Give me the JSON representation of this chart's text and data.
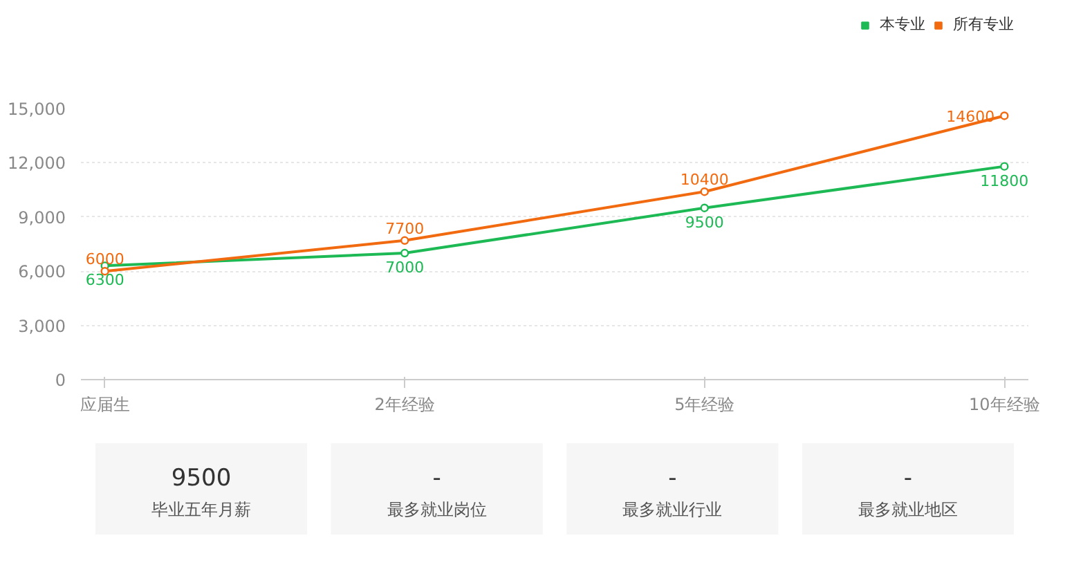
{
  "chart_data": [
    {
      "type": "line",
      "categories": [
        "应届生",
        "2年经验",
        "5年经验",
        "10年经验"
      ],
      "series": [
        {
          "name": "本专业",
          "color": "#1db954",
          "values": [
            6300,
            7000,
            9500,
            11800
          ]
        },
        {
          "name": "所有专业",
          "color": "#f26a0f",
          "values": [
            6000,
            7700,
            10400,
            14600
          ]
        }
      ],
      "ylim": [
        0,
        15000
      ],
      "yticks": [
        0,
        {
          "value": 3000,
          "label": "3,000"
        },
        {
          "value": 6000,
          "label": "6,000"
        },
        {
          "value": 9000,
          "label": "9,000"
        },
        {
          "value": 12000,
          "label": "12,000"
        },
        {
          "value": 15000,
          "label": "15,000"
        }
      ],
      "grid": "y",
      "legend": "top right",
      "marker": "circle",
      "line_style": "solid",
      "data_labels": true
    },
    {
      "type": "other",
      "annotations": [
        "9500",
        "毕业五年月薪",
        "-",
        "最多就业岗位",
        "-",
        "最多就业行业",
        "-",
        "最多就业地区"
      ]
    }
  ]
}
